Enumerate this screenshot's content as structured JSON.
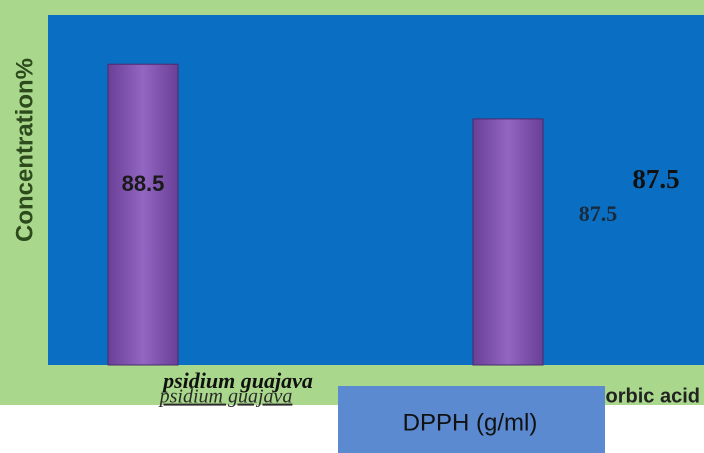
{
  "chart_data": {
    "type": "bar",
    "y_label": "Concentration%",
    "x_label": "DPPH (g/ml)",
    "categories": [
      "psidium guajava",
      "ascorbic acid"
    ],
    "values": [
      88.5,
      87.5
    ],
    "color": "#7e52ad",
    "ylim": [
      83,
      89.4
    ]
  }
}
